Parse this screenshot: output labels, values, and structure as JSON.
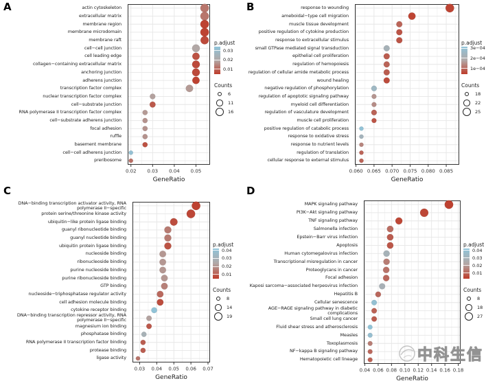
{
  "watermark": {
    "text": "中科生信",
    "logo": "circle-swoosh-logo"
  },
  "colors": {
    "dot_red": "#BE3C2A",
    "dot_gray": "#B2A8A6",
    "dot_blue": "#8FC4DA",
    "grid_major": "#E6E6E6",
    "grid_minor": "#F2F2F2",
    "frame": "#333333",
    "text": "#1A1A1A",
    "watermark_gray": "#9B9B9B"
  },
  "chart_data": [
    {
      "type": "scatter",
      "panel": "A",
      "title": "",
      "xlabel": "GeneRatio",
      "ylabel": "",
      "grid": true,
      "legend_position": "right",
      "xlim": [
        0.0185,
        0.0565
      ],
      "x_ticks": [
        0.02,
        0.03,
        0.04,
        0.05
      ],
      "x_tick_labels": [
        "0.02",
        "0.03",
        "0.04",
        "0.05"
      ],
      "color_legend": {
        "title": "p.adjust",
        "labels": [
          "0.03",
          "0.02",
          "0.01"
        ],
        "values": [
          0.03,
          0.02,
          0.01
        ],
        "domain": [
          0.004,
          0.034
        ]
      },
      "size_legend": {
        "title": "Counts",
        "labels": [
          "6",
          "11",
          "16"
        ],
        "values": [
          6,
          11,
          16
        ],
        "domain": [
          6,
          16
        ]
      },
      "points": [
        {
          "label": "actin cytoskeleton",
          "x": 0.054,
          "count": 16,
          "p_adjust": 0.012
        },
        {
          "label": "extracellular matrix",
          "x": 0.054,
          "count": 16,
          "p_adjust": 0.012
        },
        {
          "label": "membrane region",
          "x": 0.054,
          "count": 16,
          "p_adjust": 0.005
        },
        {
          "label": "membrane microdomain",
          "x": 0.054,
          "count": 16,
          "p_adjust": 0.005
        },
        {
          "label": "membrane raft",
          "x": 0.054,
          "count": 15,
          "p_adjust": 0.006
        },
        {
          "label": "cell−cell junction",
          "x": 0.05,
          "count": 14,
          "p_adjust": 0.019
        },
        {
          "label": "cell leading edge",
          "x": 0.05,
          "count": 13,
          "p_adjust": 0.007
        },
        {
          "label": "collagen−containing extracellular matrix",
          "x": 0.05,
          "count": 14,
          "p_adjust": 0.006
        },
        {
          "label": "anchoring junction",
          "x": 0.05,
          "count": 14,
          "p_adjust": 0.006
        },
        {
          "label": "adherens junction",
          "x": 0.05,
          "count": 13,
          "p_adjust": 0.005
        },
        {
          "label": "transcription factor complex",
          "x": 0.047,
          "count": 13,
          "p_adjust": 0.017
        },
        {
          "label": "nuclear transcription factor complex",
          "x": 0.03,
          "count": 9,
          "p_adjust": 0.018
        },
        {
          "label": "cell−substrate junction",
          "x": 0.03,
          "count": 10,
          "p_adjust": 0.008
        },
        {
          "label": "RNA polymerase II transcription factor complex",
          "x": 0.0265,
          "count": 8,
          "p_adjust": 0.017
        },
        {
          "label": "cell−substrate adherens junction",
          "x": 0.0265,
          "count": 8,
          "p_adjust": 0.016
        },
        {
          "label": "focal adhesion",
          "x": 0.0265,
          "count": 8,
          "p_adjust": 0.016
        },
        {
          "label": "ruffle",
          "x": 0.0265,
          "count": 8,
          "p_adjust": 0.016
        },
        {
          "label": "basement membrane",
          "x": 0.0265,
          "count": 8,
          "p_adjust": 0.007
        },
        {
          "label": "cell−cell adherens junction",
          "x": 0.02,
          "count": 6,
          "p_adjust": 0.032
        },
        {
          "label": "preribosome",
          "x": 0.02,
          "count": 6,
          "p_adjust": 0.011
        }
      ]
    },
    {
      "type": "scatter",
      "panel": "B",
      "title": "",
      "xlabel": "GeneRatio",
      "ylabel": "",
      "grid": true,
      "legend_position": "right",
      "xlim": [
        0.0597,
        0.0886
      ],
      "x_ticks": [
        0.06,
        0.065,
        0.07,
        0.075,
        0.08,
        0.085
      ],
      "x_tick_labels": [
        "0.060",
        "0.065",
        "0.070",
        "0.075",
        "0.080",
        "0.085"
      ],
      "color_legend": {
        "title": "p.adjust",
        "labels": [
          "3e−04",
          "2e−04",
          "1e−04"
        ],
        "values": [
          0.0003,
          0.0002,
          0.0001
        ],
        "domain": [
          4e-05,
          0.00031
        ]
      },
      "size_legend": {
        "title": "Counts",
        "labels": [
          "18",
          "22",
          "25"
        ],
        "values": [
          18,
          22,
          25
        ],
        "domain": [
          18,
          25
        ]
      },
      "points": [
        {
          "label": "response to wounding",
          "x": 0.086,
          "count": 25,
          "p_adjust": 5e-05
        },
        {
          "label": "ameboidal−type cell migration",
          "x": 0.0755,
          "count": 23,
          "p_adjust": 5e-05
        },
        {
          "label": "muscle tissue development",
          "x": 0.072,
          "count": 21,
          "p_adjust": 9e-05
        },
        {
          "label": "positive regulation of cytokine production",
          "x": 0.072,
          "count": 21,
          "p_adjust": 7e-05
        },
        {
          "label": "response to extracellular stimulus",
          "x": 0.072,
          "count": 21,
          "p_adjust": 7e-05
        },
        {
          "label": "small GTPase mediated signal transduction",
          "x": 0.0685,
          "count": 21,
          "p_adjust": 0.00022
        },
        {
          "label": "epithelial cell proliferation",
          "x": 0.0685,
          "count": 21,
          "p_adjust": 8e-05
        },
        {
          "label": "regulation of hemopoiesis",
          "x": 0.0685,
          "count": 21,
          "p_adjust": 9e-05
        },
        {
          "label": "regulation of cellular amide metabolic process",
          "x": 0.0685,
          "count": 21,
          "p_adjust": 8e-05
        },
        {
          "label": "wound healing",
          "x": 0.0685,
          "count": 21,
          "p_adjust": 6e-05
        },
        {
          "label": "negative regulation of phosphorylation",
          "x": 0.065,
          "count": 20,
          "p_adjust": 0.00025
        },
        {
          "label": "regulation of apoptotic signaling pathway",
          "x": 0.065,
          "count": 19,
          "p_adjust": 0.00015
        },
        {
          "label": "myeloid cell differentiation",
          "x": 0.065,
          "count": 19,
          "p_adjust": 0.00014
        },
        {
          "label": "regulation of vasculature development",
          "x": 0.065,
          "count": 20,
          "p_adjust": 9e-05
        },
        {
          "label": "muscle cell proliferation",
          "x": 0.065,
          "count": 19,
          "p_adjust": 7e-05
        },
        {
          "label": "positive regulation of catabolic process",
          "x": 0.0615,
          "count": 18,
          "p_adjust": 0.0003
        },
        {
          "label": "response to oxidative stress",
          "x": 0.0615,
          "count": 18,
          "p_adjust": 0.00023
        },
        {
          "label": "response to nutrient levels",
          "x": 0.0615,
          "count": 18,
          "p_adjust": 0.00013
        },
        {
          "label": "regulation of translation",
          "x": 0.0615,
          "count": 18,
          "p_adjust": 9e-05
        },
        {
          "label": "cellular response to external stimulus",
          "x": 0.0615,
          "count": 18,
          "p_adjust": 9e-05
        }
      ]
    },
    {
      "type": "scatter",
      "panel": "C",
      "title": "",
      "xlabel": "GeneRatio",
      "ylabel": "",
      "grid": true,
      "legend_position": "right",
      "xlim": [
        0.0258,
        0.0712
      ],
      "x_ticks": [
        0.03,
        0.04,
        0.05,
        0.06,
        0.07
      ],
      "x_tick_labels": [
        "0.03",
        "0.04",
        "0.05",
        "0.06",
        "0.07"
      ],
      "color_legend": {
        "title": "p.adjust",
        "labels": [
          "0.04",
          "0.03",
          "0.02",
          "0.01"
        ],
        "values": [
          0.04,
          0.03,
          0.02,
          0.01
        ],
        "domain": [
          0.004,
          0.042
        ]
      },
      "size_legend": {
        "title": "Counts",
        "labels": [
          "8",
          "14",
          "19"
        ],
        "values": [
          8,
          14,
          19
        ],
        "domain": [
          8,
          19
        ]
      },
      "points": [
        {
          "label": "DNA−binding transcription activator activity, RNA polymerase II−specific",
          "x": 0.063,
          "count": 19,
          "p_adjust": 0.005
        },
        {
          "label": "protein serine/threonine kinase activity",
          "x": 0.06,
          "count": 19,
          "p_adjust": 0.006
        },
        {
          "label": "ubiquitin−like protein ligase binding",
          "x": 0.05,
          "count": 16,
          "p_adjust": 0.007
        },
        {
          "label": "guanyl ribonucleotide binding",
          "x": 0.0465,
          "count": 15,
          "p_adjust": 0.015
        },
        {
          "label": "guanyl nucleotide binding",
          "x": 0.0465,
          "count": 15,
          "p_adjust": 0.015
        },
        {
          "label": "ubiquitin protein ligase binding",
          "x": 0.0465,
          "count": 15,
          "p_adjust": 0.008
        },
        {
          "label": "nucleoside binding",
          "x": 0.0435,
          "count": 14,
          "p_adjust": 0.02
        },
        {
          "label": "ribonucleoside binding",
          "x": 0.0435,
          "count": 14,
          "p_adjust": 0.02
        },
        {
          "label": "purine nucleoside binding",
          "x": 0.0435,
          "count": 14,
          "p_adjust": 0.02
        },
        {
          "label": "purine ribonucleoside binding",
          "x": 0.0445,
          "count": 14,
          "p_adjust": 0.02
        },
        {
          "label": "GTP binding",
          "x": 0.0445,
          "count": 14,
          "p_adjust": 0.016
        },
        {
          "label": "nucleoside−triphosphatase regulator activity",
          "x": 0.042,
          "count": 14,
          "p_adjust": 0.012
        },
        {
          "label": "cell adhesion molecule binding",
          "x": 0.042,
          "count": 14,
          "p_adjust": 0.007
        },
        {
          "label": "cytokine receptor binding",
          "x": 0.0385,
          "count": 12,
          "p_adjust": 0.041
        },
        {
          "label": "DNA−binding transcription repressor activity, RNA polymerase II−specific",
          "x": 0.0355,
          "count": 11,
          "p_adjust": 0.022
        },
        {
          "label": "magnesium ion binding",
          "x": 0.0355,
          "count": 11,
          "p_adjust": 0.009
        },
        {
          "label": "phosphatase binding",
          "x": 0.0325,
          "count": 10,
          "p_adjust": 0.029
        },
        {
          "label": "RNA polymerase II transcription factor binding",
          "x": 0.032,
          "count": 10,
          "p_adjust": 0.01
        },
        {
          "label": "protease binding",
          "x": 0.032,
          "count": 10,
          "p_adjust": 0.01
        },
        {
          "label": "ligase activity",
          "x": 0.029,
          "count": 8,
          "p_adjust": 0.014
        }
      ]
    },
    {
      "type": "scatter",
      "panel": "D",
      "title": "",
      "xlabel": "GeneRatio",
      "ylabel": "",
      "grid": true,
      "legend_position": "right",
      "xlim": [
        0.0385,
        0.1835
      ],
      "x_ticks": [
        0.04,
        0.06,
        0.08,
        0.1,
        0.12,
        0.14,
        0.16,
        0.18
      ],
      "x_tick_labels": [
        "0.04",
        "0.06",
        "0.08",
        "0.10",
        "0.12",
        "0.14",
        "0.16",
        "0.18"
      ],
      "color_legend": {
        "title": "p.adjust",
        "labels": [
          "0.04",
          "0.03",
          "0.02",
          "0.01"
        ],
        "values": [
          0.04,
          0.03,
          0.02,
          0.01
        ],
        "domain": [
          0.002,
          0.042
        ]
      },
      "size_legend": {
        "title": "Counts",
        "labels": [
          "8",
          "18",
          "27"
        ],
        "values": [
          8,
          18,
          27
        ],
        "domain": [
          8,
          27
        ]
      },
      "points": [
        {
          "label": "MAPK signaling pathway",
          "x": 0.166,
          "count": 27,
          "p_adjust": 0.003
        },
        {
          "label": "PI3K−Akt signaling pathway",
          "x": 0.129,
          "count": 26,
          "p_adjust": 0.004
        },
        {
          "label": "TNF signaling pathway",
          "x": 0.091,
          "count": 20,
          "p_adjust": 0.004
        },
        {
          "label": "Salmonella infection",
          "x": 0.078,
          "count": 18,
          "p_adjust": 0.011
        },
        {
          "label": "Epstein−Barr virus infection",
          "x": 0.078,
          "count": 18,
          "p_adjust": 0.008
        },
        {
          "label": "Apoptosis",
          "x": 0.078,
          "count": 18,
          "p_adjust": 0.007
        },
        {
          "label": "Human cytomegalovirus infection",
          "x": 0.0725,
          "count": 17,
          "p_adjust": 0.029
        },
        {
          "label": "Transcriptional misregulation in cancer",
          "x": 0.0725,
          "count": 17,
          "p_adjust": 0.014
        },
        {
          "label": "Proteoglycans in cancer",
          "x": 0.072,
          "count": 17,
          "p_adjust": 0.012
        },
        {
          "label": "Focal adhesion",
          "x": 0.072,
          "count": 17,
          "p_adjust": 0.01
        },
        {
          "label": "Kaposi sarcoma−associated herpesvirus infection",
          "x": 0.066,
          "count": 16,
          "p_adjust": 0.028
        },
        {
          "label": "Hepatitis B",
          "x": 0.06,
          "count": 14,
          "p_adjust": 0.01
        },
        {
          "label": "Cellular senescence",
          "x": 0.054,
          "count": 13,
          "p_adjust": 0.039
        },
        {
          "label": "AGE−RAGE signaling pathway in diabetic complications",
          "x": 0.054,
          "count": 13,
          "p_adjust": 0.009
        },
        {
          "label": "Small cell lung cancer",
          "x": 0.054,
          "count": 13,
          "p_adjust": 0.008
        },
        {
          "label": "Fluid shear stress and atherosclerosis",
          "x": 0.048,
          "count": 10,
          "p_adjust": 0.041
        },
        {
          "label": "Measles",
          "x": 0.048,
          "count": 10,
          "p_adjust": 0.038
        },
        {
          "label": "Toxoplasmosis",
          "x": 0.048,
          "count": 10,
          "p_adjust": 0.014
        },
        {
          "label": "NF−kappa B signaling pathway",
          "x": 0.048,
          "count": 10,
          "p_adjust": 0.01
        },
        {
          "label": "Hematopoietic cell lineage",
          "x": 0.048,
          "count": 10,
          "p_adjust": 0.009
        }
      ]
    }
  ]
}
